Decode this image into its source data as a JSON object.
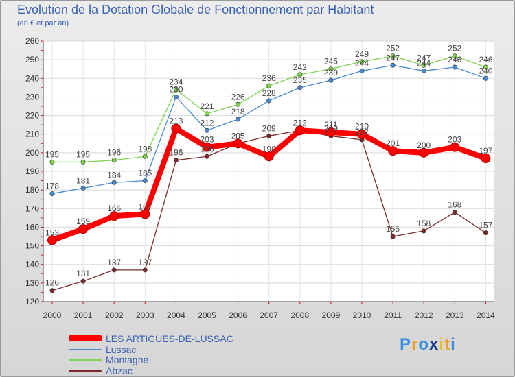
{
  "header": {
    "title": "Evolution de la Dotation Globale de Fonctionnement par Habitant",
    "subtitle": "(en € et par an)"
  },
  "logo": {
    "text": "Proxiti"
  },
  "chart_data": {
    "type": "line",
    "title": "Evolution de la Dotation Globale de Fonctionnement par Habitant",
    "subtitle": "(en € et par an)",
    "xlabel": "",
    "ylabel": "",
    "ylim": [
      120,
      260
    ],
    "yticks": [
      120,
      130,
      140,
      150,
      160,
      170,
      180,
      190,
      200,
      210,
      220,
      230,
      240,
      250,
      260
    ],
    "grid": true,
    "legend_position": "bottom-left",
    "categories": [
      "2000",
      "2001",
      "2002",
      "2003",
      "2004",
      "2005",
      "2006",
      "2007",
      "2008",
      "2009",
      "2010",
      "2011",
      "2012",
      "2013",
      "2014"
    ],
    "series": [
      {
        "name": "LES ARTIGUES-DE-LUSSAC",
        "color": "#ff0000",
        "emphasis": true,
        "values": [
          153,
          159,
          166,
          167,
          213,
          203,
          205,
          198,
          212,
          211,
          210,
          201,
          200,
          203,
          197
        ]
      },
      {
        "name": "Lussac",
        "color": "#4b8ad1",
        "emphasis": false,
        "values": [
          178,
          181,
          184,
          185,
          230,
          212,
          218,
          228,
          235,
          239,
          244,
          247,
          244,
          246,
          240
        ]
      },
      {
        "name": "Montagne",
        "color": "#7ed34f",
        "emphasis": false,
        "values": [
          195,
          195,
          196,
          198,
          234,
          221,
          226,
          236,
          242,
          245,
          249,
          252,
          247,
          252,
          246
        ]
      },
      {
        "name": "Abzac",
        "color": "#7a2a2a",
        "emphasis": false,
        "values": [
          126,
          131,
          137,
          137,
          196,
          198,
          205,
          209,
          212,
          209,
          207,
          155,
          158,
          168,
          157
        ]
      }
    ]
  }
}
